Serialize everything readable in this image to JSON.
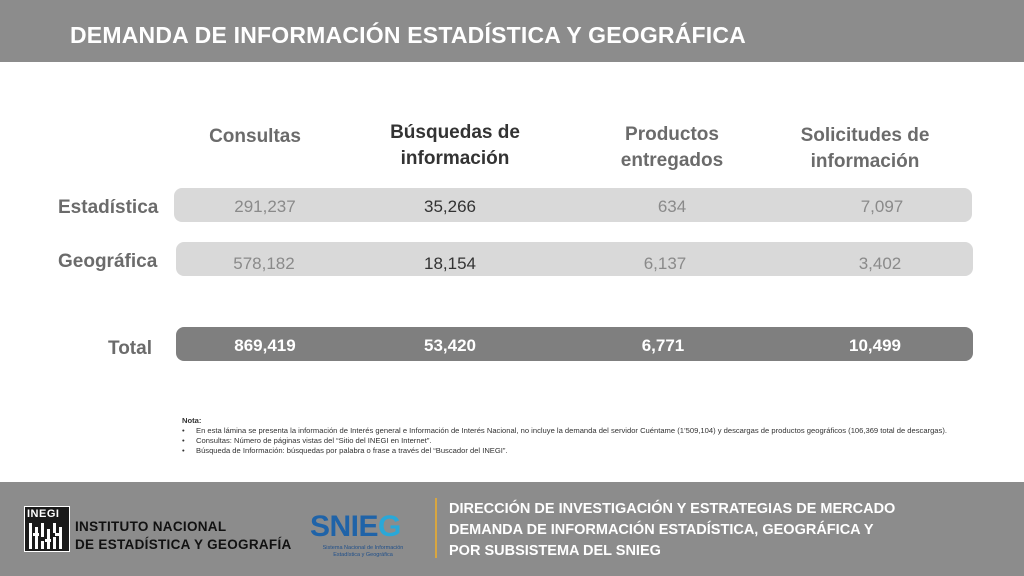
{
  "header": {
    "title": "DEMANDA DE INFORMACIÓN ESTADÍSTICA Y GEOGRÁFICA"
  },
  "table": {
    "columns": [
      {
        "label_line1": "Consultas",
        "label_line2": ""
      },
      {
        "label_line1": "Búsquedas de",
        "label_line2": "información"
      },
      {
        "label_line1": "Productos",
        "label_line2": "entregados"
      },
      {
        "label_line1": "Solicitudes de",
        "label_line2": "información"
      }
    ],
    "rows": [
      {
        "label": "Estadística",
        "values": [
          "291,237",
          "35,266",
          "634",
          "7,097"
        ]
      },
      {
        "label": "Geográfica",
        "values": [
          "578,182",
          "18,154",
          "6,137",
          "3,402"
        ]
      },
      {
        "label": "Total",
        "values": [
          "869,419",
          "53,420",
          "6,771",
          "10,499"
        ]
      }
    ]
  },
  "notes": {
    "title": "Nota:",
    "items": [
      "En esta lámina se presenta la información de Interés general e Información de Interés Nacional, no incluye la demanda del servidor Cuéntame (1’509,104) y descargas de productos geográficos (106,369 total de descargas).",
      "Consultas: Número de páginas vistas del “Sitio del INEGI en Internet”.",
      "Búsqueda de Información: búsquedas por palabra o frase a través del “Buscador del INEGI”."
    ]
  },
  "footer": {
    "inegi_logo_text": "INEGI",
    "inegi_name_line1": "INSTITUTO NACIONAL",
    "inegi_name_line2": "DE ESTADÍSTICA Y GEOGRAFÍA",
    "snieg_logo_main": "SNIE",
    "snieg_logo_g": "G",
    "snieg_sub": "Sistema Nacional de Información Estadística y Geográfica",
    "text_line1": "DIRECCIÓN DE INVESTIGACIÓN Y ESTRATEGIAS DE MERCADO",
    "text_line2": "DEMANDA DE INFORMACIÓN ESTADÍSTICA, GEOGRÁFICA Y",
    "text_line3": "POR SUBSISTEMA DEL SNIEG"
  },
  "colors": {
    "header_bg": "#8c8c8c",
    "light_bar": "#d9d9d9",
    "total_bar": "#7f7f7f",
    "divider": "#d8a640"
  }
}
